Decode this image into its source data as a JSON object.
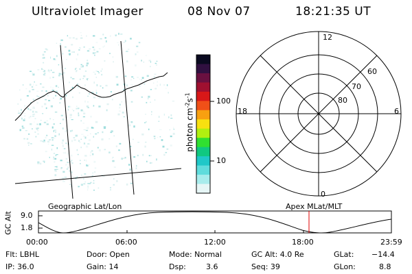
{
  "header": {
    "instrument": "Ultraviolet Imager",
    "date": "08 Nov 07",
    "time": "18:21:35 UT"
  },
  "geographic_panel": {
    "label": "Geographic Lat/Lon"
  },
  "colorbar": {
    "unit_label": "photon cm",
    "unit_exp_1": "-2",
    "unit_s": "s",
    "unit_exp_2": "-1",
    "ticks": [
      "100",
      "10"
    ],
    "colors": [
      "#0a0a20",
      "#301040",
      "#6a1040",
      "#a01030",
      "#d81818",
      "#f05018",
      "#f8a010",
      "#f8e010",
      "#b0f010",
      "#30e030",
      "#10c880",
      "#20c8c8",
      "#60dcdc",
      "#a8ecec",
      "#e6f6f6"
    ]
  },
  "polar_plot": {
    "label": "Apex MLat/MLT",
    "mlt_labels": {
      "top": "12",
      "left": "18",
      "right": "6",
      "bottom": "0"
    },
    "lat_labels": [
      "60",
      "70",
      "80"
    ]
  },
  "altitude_plot": {
    "ylabel": "GC Alt",
    "yticks": [
      "9.0",
      "1.8"
    ],
    "xticks": [
      "00:00",
      "06:00",
      "12:00",
      "18:00",
      "23:59"
    ],
    "current_time_marker_color": "#e00000"
  },
  "info": {
    "filter": "Flt: LBHL",
    "ip": "IP: 36.0",
    "door": "Door: Open",
    "gain": "Gain: 14",
    "mode": "Mode: Normal",
    "dsp_label": "Dsp:",
    "dsp_value": "3.6",
    "gc_alt": "GC Alt: 4.0 Re",
    "seq": "Seq: 39",
    "glat_label": "GLat:",
    "glat_value": "−14.4",
    "glon_label": "GLon:",
    "glon_value": "8.8"
  }
}
